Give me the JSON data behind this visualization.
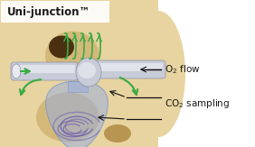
{
  "title": "Uni-junction™",
  "label1": "O₂ flow",
  "label2": "CO₂ sampling",
  "white_bg": "#ffffff",
  "text_color": "#1a1a1a",
  "skin_light": "#e8d4a0",
  "skin_mid": "#d4b87a",
  "skin_dark": "#b89550",
  "nostril_dark": "#4a3010",
  "green_color": "#3aaa45",
  "blue_fill": "#9aaedd",
  "blue_stroke": "#6688cc",
  "purple_swirl": "#6655aa",
  "gray_tube": "#c8ccd8",
  "gray_tube_light": "#e8eaf0",
  "gray_tube_edge": "#8890a8",
  "arrow_color": "#111111",
  "fig_width": 2.82,
  "fig_height": 1.63,
  "dpi": 100
}
